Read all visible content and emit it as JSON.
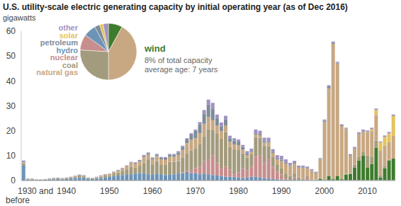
{
  "chart_data": [
    {
      "type": "bar",
      "title": "U.S. utility-scale electric generating capacity by initial operating year (as of Dec 2016)",
      "y_label": "gigawatts",
      "stacked": true,
      "grid": false,
      "ylim": [
        0,
        60
      ],
      "yticks": [
        0,
        10,
        20,
        30,
        40,
        50,
        60
      ],
      "categories": [
        "1930 and before",
        null,
        null,
        null,
        null,
        null,
        null,
        null,
        null,
        null,
        "1940",
        null,
        null,
        null,
        null,
        null,
        null,
        null,
        null,
        null,
        "1950",
        null,
        null,
        null,
        null,
        null,
        null,
        null,
        null,
        null,
        "1960",
        null,
        null,
        null,
        null,
        null,
        null,
        null,
        null,
        null,
        "1970",
        null,
        null,
        null,
        null,
        null,
        null,
        null,
        null,
        null,
        "1980",
        null,
        null,
        null,
        null,
        null,
        null,
        null,
        null,
        null,
        "1990",
        null,
        null,
        null,
        null,
        null,
        null,
        null,
        null,
        null,
        "2000",
        null,
        null,
        null,
        null,
        null,
        null,
        null,
        null,
        null,
        "2010",
        null,
        null,
        null,
        null,
        null,
        null
      ],
      "series": [
        {
          "name": "hydro",
          "color": "#6d93b6",
          "values": [
            6,
            0.3,
            0.3,
            0.2,
            0.2,
            0.3,
            0.4,
            0.5,
            0.6,
            0.5,
            0.6,
            0.8,
            1,
            1.2,
            1.2,
            0.8,
            0.6,
            0.8,
            1,
            1.2,
            1.5,
            1.8,
            2,
            2.2,
            2.5,
            2.5,
            2.8,
            3,
            3,
            2.5,
            2.5,
            2.8,
            2.5,
            2.2,
            2.5,
            2.5,
            2.8,
            3,
            3.5,
            3,
            3,
            2.5,
            2.8,
            2.5,
            2.2,
            2,
            1.8,
            1.5,
            1.5,
            1.5,
            1.2,
            1,
            1.2,
            1.5,
            1.5,
            1.2,
            1,
            0.8,
            0.6,
            0.5,
            0.4,
            0.3,
            0.3,
            0.3,
            0.2,
            0.2,
            0.2,
            0.2,
            0.1,
            0.1,
            0.1,
            0.1,
            0.1,
            0.1,
            0.1,
            0.1,
            0.1,
            0.1,
            0.1,
            0.1,
            0.1,
            0.1,
            0.1,
            0.2,
            0.1,
            0.1,
            0.3
          ]
        },
        {
          "name": "wind",
          "color": "#3e7b2d",
          "values": [
            0,
            0,
            0,
            0,
            0,
            0,
            0,
            0,
            0,
            0,
            0,
            0,
            0,
            0,
            0,
            0,
            0,
            0,
            0,
            0,
            0,
            0,
            0,
            0,
            0,
            0,
            0,
            0,
            0,
            0,
            0,
            0,
            0,
            0,
            0,
            0,
            0,
            0,
            0,
            0,
            0,
            0,
            0,
            0,
            0,
            0,
            0,
            0,
            0,
            0,
            0,
            0,
            0,
            0,
            0,
            0,
            0,
            0,
            0,
            0,
            0,
            0,
            0,
            0,
            0,
            0,
            0,
            0,
            0,
            0.6,
            0.1,
            1.6,
            0.4,
            1.6,
            0.4,
            2.3,
            2.5,
            5,
            8,
            10,
            5,
            6.5,
            13,
            1,
            4.8,
            8,
            8.5
          ]
        },
        {
          "name": "nuclear",
          "color": "#c78e8e",
          "values": [
            0,
            0,
            0,
            0,
            0,
            0,
            0,
            0,
            0,
            0,
            0,
            0,
            0,
            0,
            0,
            0,
            0,
            0,
            0,
            0,
            0,
            0,
            0,
            0,
            0,
            0,
            0,
            0,
            0,
            0,
            0,
            0,
            0,
            0.1,
            0,
            0,
            0,
            0.3,
            0.5,
            1,
            2,
            3,
            5,
            6,
            8,
            5,
            3,
            4,
            3,
            1,
            2,
            4,
            3,
            4,
            8,
            9,
            6,
            8,
            5,
            3,
            2,
            0.5,
            0,
            1,
            0,
            0,
            1.2,
            0,
            0,
            0,
            0,
            0,
            0,
            0,
            0,
            0,
            0,
            0,
            0,
            0,
            0,
            0,
            0,
            0,
            0,
            0,
            0
          ]
        },
        {
          "name": "coal",
          "color": "#a39b7d",
          "values": [
            1,
            0.2,
            0.2,
            0.1,
            0.1,
            0.1,
            0.2,
            0.3,
            0.3,
            0.2,
            0.3,
            0.4,
            0.6,
            0.8,
            0.6,
            0.2,
            0.2,
            0.3,
            0.6,
            0.8,
            0.6,
            1,
            1.2,
            1.5,
            2,
            3,
            2.5,
            3,
            4,
            6,
            4,
            5,
            4,
            4,
            5,
            5,
            5,
            6,
            7,
            8,
            8,
            9,
            10,
            12,
            10,
            12,
            12,
            14,
            9,
            10,
            9,
            6,
            5,
            5,
            8,
            7,
            7,
            5,
            4,
            3,
            2.5,
            2,
            1.5,
            1.5,
            1,
            0.5,
            0.5,
            0.2,
            0.3,
            0.2,
            0.3,
            0.3,
            0.4,
            0.3,
            0.4,
            0.3,
            0.4,
            1.2,
            1.5,
            1.5,
            5,
            3,
            3,
            0.8,
            1,
            0.2,
            0
          ]
        },
        {
          "name": "natural gas",
          "color": "#c8a882",
          "values": [
            0.3,
            0.1,
            0.1,
            0.1,
            0.1,
            0.1,
            0.1,
            0.1,
            0.1,
            0.1,
            0.1,
            0.1,
            0.2,
            0.2,
            0.2,
            0.1,
            0.1,
            0.2,
            0.3,
            0.4,
            0.5,
            0.5,
            0.8,
            1,
            1.2,
            1.5,
            1.5,
            1.6,
            2.5,
            2,
            2,
            2,
            2,
            2,
            2,
            2,
            2.5,
            3,
            4,
            4.5,
            4,
            4.5,
            5,
            5,
            4,
            3,
            3,
            2.5,
            2,
            2,
            2,
            1.5,
            1,
            1,
            1,
            1,
            1.2,
            1.5,
            1.5,
            2,
            3,
            4,
            4,
            4,
            4,
            4.5,
            3,
            3.5,
            2.5,
            7.5,
            23,
            35,
            54,
            45,
            21,
            18,
            7,
            6.5,
            9,
            8,
            9,
            10,
            10,
            10,
            8,
            7,
            9
          ]
        },
        {
          "name": "petroleum",
          "color": "#7d8c99",
          "values": [
            0.3,
            0.1,
            0.1,
            0,
            0,
            0,
            0.1,
            0.1,
            0.1,
            0.1,
            0.1,
            0.1,
            0.1,
            0.1,
            0.1,
            0,
            0.1,
            0.1,
            0.1,
            0.1,
            0.1,
            0.2,
            0.2,
            0.2,
            0.2,
            0.3,
            0.3,
            0.4,
            0.5,
            0.5,
            0.5,
            0.6,
            0.7,
            0.8,
            0.8,
            0.8,
            1,
            1.2,
            1.5,
            2,
            3,
            3.5,
            4,
            5,
            4.5,
            3,
            2,
            2.5,
            1.5,
            1.5,
            1.5,
            1,
            0.8,
            0.5,
            0.5,
            0.3,
            0.5,
            0.4,
            0.3,
            0.5,
            0.5,
            0.5,
            0.3,
            0.3,
            0.2,
            0.2,
            0.2,
            0.2,
            0.2,
            0.2,
            0.5,
            0.8,
            0.5,
            0.3,
            0.3,
            0.2,
            0.2,
            0.2,
            0.2,
            0.2,
            0.2,
            0.2,
            0.2,
            0.1,
            0.1,
            0.1,
            0.1
          ]
        },
        {
          "name": "solar",
          "color": "#e5c35c",
          "values": [
            0,
            0,
            0,
            0,
            0,
            0,
            0,
            0,
            0,
            0,
            0,
            0,
            0,
            0,
            0,
            0,
            0,
            0,
            0,
            0,
            0,
            0,
            0,
            0,
            0,
            0,
            0,
            0,
            0,
            0,
            0,
            0,
            0,
            0,
            0,
            0,
            0,
            0,
            0,
            0,
            0,
            0,
            0,
            0,
            0,
            0,
            0,
            0,
            0,
            0,
            0,
            0,
            0,
            0,
            0,
            0,
            0,
            0,
            0,
            0,
            0,
            0,
            0,
            0,
            0,
            0,
            0,
            0,
            0,
            0,
            0,
            0,
            0,
            0,
            0,
            0,
            0,
            0,
            0,
            0.1,
            0.2,
            0.8,
            2,
            3.2,
            3.5,
            3.5,
            8
          ]
        },
        {
          "name": "other",
          "color": "#a192c0",
          "values": [
            0.4,
            0.1,
            0.1,
            0.1,
            0.1,
            0.1,
            0.1,
            0.1,
            0.1,
            0.1,
            0.1,
            0.1,
            0.1,
            0.1,
            0.1,
            0.1,
            0.1,
            0.1,
            0.1,
            0.1,
            0.1,
            0.1,
            0.1,
            0.2,
            0.2,
            0.2,
            0.2,
            0.3,
            0.3,
            0.3,
            0.3,
            0.3,
            0.3,
            0.3,
            0.4,
            0.4,
            0.5,
            0.5,
            0.5,
            0.5,
            0.5,
            1,
            1.5,
            2,
            2.5,
            1.5,
            1.5,
            1.5,
            1,
            1,
            0.8,
            0.8,
            0.8,
            0.8,
            1.5,
            1.5,
            1.5,
            1.5,
            1.2,
            1.2,
            1.5,
            1.2,
            1,
            0.8,
            0.6,
            0.6,
            0.5,
            0.5,
            0.4,
            0.4,
            0.5,
            0.5,
            0.4,
            0.4,
            0.4,
            0.3,
            0.4,
            0.5,
            0.6,
            0.6,
            0.6,
            0.6,
            0.6,
            0.4,
            0.6,
            0.6,
            0.6
          ]
        }
      ]
    },
    {
      "type": "pie",
      "categories": [
        "wind",
        "natural gas",
        "coal",
        "nuclear",
        "hydro",
        "petroleum",
        "solar",
        "other"
      ],
      "values": [
        8,
        42,
        26,
        9,
        7,
        3,
        2,
        3
      ],
      "colors": [
        "#3e7b2d",
        "#c8a882",
        "#a39b7d",
        "#c78e8e",
        "#6d93b6",
        "#7d8c99",
        "#e5c35c",
        "#a192c0"
      ],
      "annotations": [
        "8% of total capacity",
        "average age: 7 years"
      ]
    }
  ]
}
